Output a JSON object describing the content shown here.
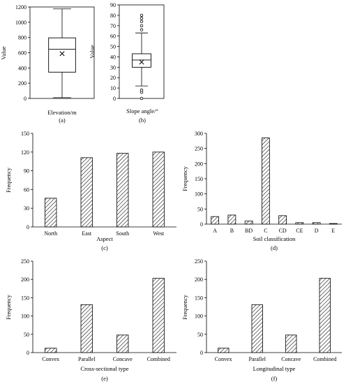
{
  "hatch_color": "#000000",
  "background": "#ffffff",
  "chart_data": [
    {
      "id": "a",
      "type": "box",
      "panel_label": "(a)",
      "xlabel": "Elevation/m",
      "ylabel": "Value",
      "ylim": [
        0,
        1200
      ],
      "yticks": [
        0,
        200,
        400,
        600,
        800,
        1000,
        1200
      ],
      "box": {
        "whisker_low": 10,
        "q1": 345,
        "median": 645,
        "q3": 795,
        "whisker_high": 1175,
        "mean": 588
      },
      "outliers": []
    },
    {
      "id": "b",
      "type": "box",
      "panel_label": "(b)",
      "xlabel": "Slope angle/°",
      "ylabel": "Value",
      "ylim": [
        0,
        90
      ],
      "yticks": [
        0,
        10,
        20,
        30,
        40,
        50,
        60,
        70,
        80,
        90
      ],
      "box": {
        "whisker_low": 12,
        "q1": 30,
        "median": 37,
        "q3": 43,
        "whisker_high": 63,
        "mean": 35
      },
      "outliers": [
        0,
        6,
        8,
        66,
        70,
        74,
        77,
        80
      ]
    },
    {
      "id": "c",
      "type": "bar",
      "panel_label": "(c)",
      "xlabel": "Aspect",
      "ylabel": "Frequency",
      "ylim": [
        0,
        150
      ],
      "yticks": [
        0,
        30,
        60,
        90,
        120,
        150
      ],
      "categories": [
        "North",
        "East",
        "South",
        "West"
      ],
      "values": [
        46,
        111,
        118,
        120
      ]
    },
    {
      "id": "d",
      "type": "bar",
      "panel_label": "(d)",
      "xlabel": "Soil classification",
      "ylabel": "Frequency",
      "ylim": [
        0,
        300
      ],
      "yticks": [
        0,
        50,
        100,
        150,
        200,
        250,
        300
      ],
      "categories": [
        "A",
        "B",
        "BD",
        "C",
        "CD",
        "CE",
        "D",
        "E"
      ],
      "values": [
        25,
        30,
        10,
        285,
        28,
        5,
        5,
        2
      ]
    },
    {
      "id": "e",
      "type": "bar",
      "panel_label": "(e)",
      "xlabel": "Cross-sectional type",
      "ylabel": "Frequency",
      "ylim": [
        0,
        250
      ],
      "yticks": [
        0,
        50,
        100,
        150,
        200,
        250
      ],
      "categories": [
        "Convex",
        "Parallel",
        "Concave",
        "Combined"
      ],
      "values": [
        12,
        131,
        48,
        203
      ]
    },
    {
      "id": "f",
      "type": "bar",
      "panel_label": "(f)",
      "xlabel": "Longitudinal type",
      "ylabel": "Frequency",
      "ylim": [
        0,
        250
      ],
      "yticks": [
        0,
        50,
        100,
        150,
        200,
        250
      ],
      "categories": [
        "Convex",
        "Parallel",
        "Concave",
        "Combined"
      ],
      "values": [
        12,
        131,
        48,
        203
      ]
    }
  ]
}
